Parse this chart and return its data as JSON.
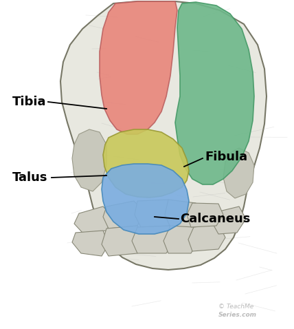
{
  "background_color": "#ffffff",
  "tibia_color": "#E8857A",
  "fibula_color": "#6DB88A",
  "talus_color": "#C8C85A",
  "calcaneus_color": "#7AADE0",
  "outline_color": "#888877",
  "watermark_color": "#bbbbbb",
  "label_fontsize": 13,
  "tibia_label": "Tibia",
  "fibula_label": "Fibula",
  "talus_label": "Talus",
  "calcaneus_label": "Calcaneus",
  "watermark_line1": "© TeachMe",
  "watermark_line2": "Series",
  "watermark_line3": ".com"
}
